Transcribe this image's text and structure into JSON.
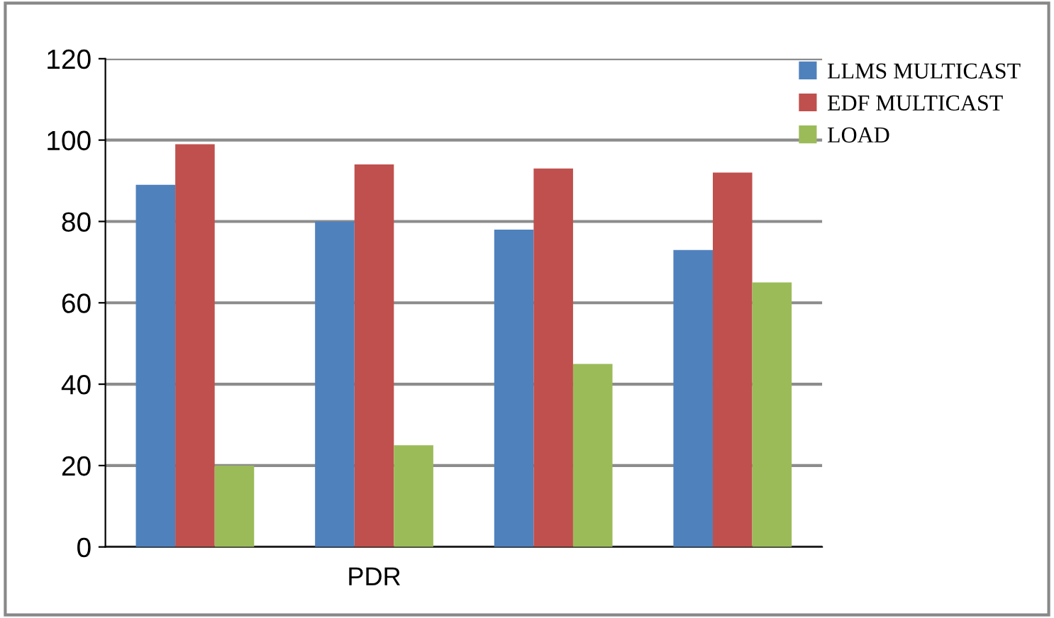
{
  "chart_data": {
    "type": "bar",
    "xlabel": null,
    "categories": [
      null,
      "PDR",
      null,
      null
    ],
    "series": [
      {
        "name": "LLMS MULTICAST",
        "color": "#4f81bd",
        "values": [
          89,
          80,
          78,
          73
        ]
      },
      {
        "name": "EDF MULTICAST",
        "color": "#c0504d",
        "values": [
          99,
          94,
          93,
          92
        ]
      },
      {
        "name": "LOAD",
        "color": "#9bbb59",
        "values": [
          20,
          25,
          45,
          65
        ]
      }
    ],
    "ylim": [
      0,
      120
    ],
    "yticks": [
      0,
      20,
      40,
      60,
      80,
      100,
      120
    ],
    "grid": "y",
    "legend": "top right"
  }
}
